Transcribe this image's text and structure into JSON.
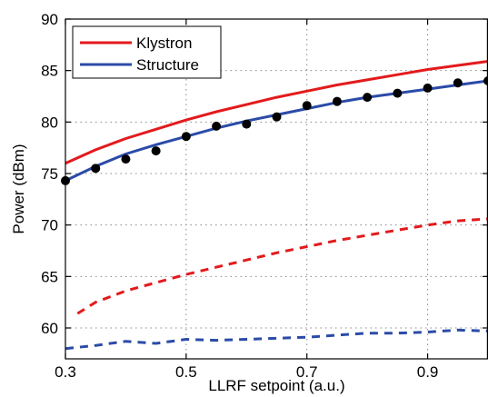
{
  "chart_data": {
    "type": "line",
    "xlabel": "LLRF setpoint (a.u.)",
    "ylabel": "Power (dBm)",
    "xlim": [
      0.3,
      1.0
    ],
    "ylim": [
      57,
      90
    ],
    "xticks": [
      0.3,
      0.5,
      0.7,
      0.9
    ],
    "yticks": [
      60,
      65,
      70,
      75,
      80,
      85,
      90
    ],
    "xtick_labels": [
      "0.3",
      "0.5",
      "0.7",
      "0.9"
    ],
    "ytick_labels": [
      "60",
      "65",
      "70",
      "75",
      "80",
      "85",
      "90"
    ],
    "grid": true,
    "legend_position": "top-left",
    "series": [
      {
        "name": "Klystron",
        "style": "solid",
        "color": "#e31a1c",
        "x": [
          0.3,
          0.35,
          0.4,
          0.45,
          0.5,
          0.55,
          0.6,
          0.65,
          0.7,
          0.75,
          0.8,
          0.85,
          0.9,
          0.95,
          1.0
        ],
        "y": [
          76.0,
          77.3,
          78.4,
          79.3,
          80.2,
          81.0,
          81.7,
          82.4,
          83.0,
          83.6,
          84.1,
          84.6,
          85.1,
          85.5,
          85.9
        ]
      },
      {
        "name": "Structure",
        "style": "solid",
        "color": "#2b4ba7",
        "x": [
          0.3,
          0.35,
          0.4,
          0.45,
          0.5,
          0.55,
          0.6,
          0.65,
          0.7,
          0.75,
          0.8,
          0.85,
          0.9,
          0.95,
          1.0
        ],
        "y": [
          74.3,
          75.7,
          76.9,
          77.8,
          78.6,
          79.4,
          80.1,
          80.7,
          81.3,
          81.9,
          82.4,
          82.8,
          83.2,
          83.6,
          84.0
        ]
      },
      {
        "style": "dashed",
        "color": "#e31a1c",
        "x": [
          0.32,
          0.35,
          0.4,
          0.45,
          0.5,
          0.55,
          0.6,
          0.65,
          0.7,
          0.75,
          0.8,
          0.85,
          0.9,
          0.95,
          1.0
        ],
        "y": [
          61.4,
          62.5,
          63.6,
          64.4,
          65.2,
          65.9,
          66.6,
          67.3,
          67.9,
          68.5,
          69.0,
          69.5,
          70.0,
          70.4,
          70.6
        ]
      },
      {
        "style": "dashed",
        "color": "#2b4ba7",
        "x": [
          0.3,
          0.35,
          0.4,
          0.45,
          0.5,
          0.55,
          0.6,
          0.65,
          0.7,
          0.75,
          0.8,
          0.85,
          0.9,
          0.95,
          1.0
        ],
        "y": [
          58.0,
          58.3,
          58.7,
          58.5,
          58.9,
          58.8,
          58.9,
          59.0,
          59.1,
          59.3,
          59.5,
          59.5,
          59.6,
          59.8,
          59.7
        ]
      },
      {
        "style": "markers",
        "color": "#000000",
        "x": [
          0.3,
          0.35,
          0.4,
          0.45,
          0.5,
          0.55,
          0.6,
          0.65,
          0.7,
          0.75,
          0.8,
          0.85,
          0.9,
          0.95,
          1.0
        ],
        "y": [
          74.3,
          75.5,
          76.4,
          77.2,
          78.6,
          79.6,
          79.8,
          80.5,
          81.6,
          82.0,
          82.4,
          82.8,
          83.3,
          83.8,
          84.0
        ]
      }
    ],
    "legend_entries": [
      "Klystron",
      "Structure"
    ]
  }
}
